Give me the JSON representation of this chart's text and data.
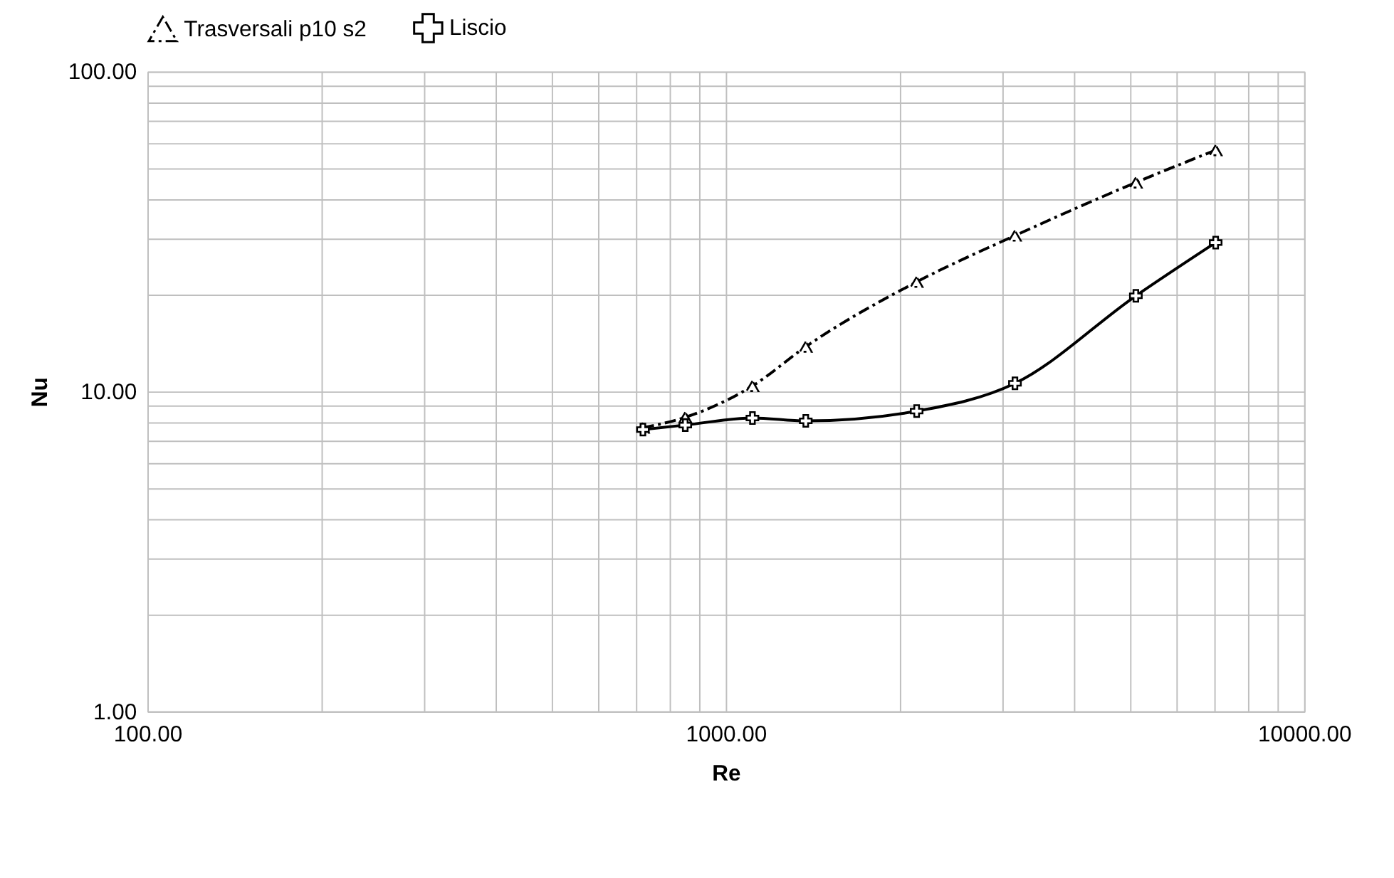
{
  "chart_data": {
    "type": "line",
    "xlabel": "Re",
    "ylabel": "Nu",
    "log": "xy",
    "grid": true,
    "legend": "top",
    "xlim": [
      100,
      10000
    ],
    "ylim": [
      1,
      100
    ],
    "xticks": [
      {
        "value": 100,
        "label": "100.00"
      },
      {
        "value": 200,
        "label": null
      },
      {
        "value": 300,
        "label": null
      },
      {
        "value": 400,
        "label": null
      },
      {
        "value": 500,
        "label": null
      },
      {
        "value": 600,
        "label": null
      },
      {
        "value": 700,
        "label": null
      },
      {
        "value": 800,
        "label": null
      },
      {
        "value": 900,
        "label": null
      },
      {
        "value": 1000,
        "label": "1000.00"
      },
      {
        "value": 2000,
        "label": null
      },
      {
        "value": 3000,
        "label": null
      },
      {
        "value": 4000,
        "label": null
      },
      {
        "value": 5000,
        "label": null
      },
      {
        "value": 6000,
        "label": null
      },
      {
        "value": 7000,
        "label": null
      },
      {
        "value": 8000,
        "label": null
      },
      {
        "value": 9000,
        "label": null
      },
      {
        "value": 10000,
        "label": "10000.00"
      }
    ],
    "yticks": [
      {
        "value": 1,
        "label": "1.00"
      },
      {
        "value": 2,
        "label": null
      },
      {
        "value": 3,
        "label": null
      },
      {
        "value": 4,
        "label": null
      },
      {
        "value": 5,
        "label": null
      },
      {
        "value": 6,
        "label": null
      },
      {
        "value": 7,
        "label": null
      },
      {
        "value": 8,
        "label": null
      },
      {
        "value": 9,
        "label": null
      },
      {
        "value": 10,
        "label": "10.00"
      },
      {
        "value": 20,
        "label": null
      },
      {
        "value": 30,
        "label": null
      },
      {
        "value": 40,
        "label": null
      },
      {
        "value": 50,
        "label": null
      },
      {
        "value": 60,
        "label": null
      },
      {
        "value": 70,
        "label": null
      },
      {
        "value": 80,
        "label": null
      },
      {
        "value": 90,
        "label": null
      },
      {
        "value": 100,
        "label": "100.00"
      }
    ],
    "x": [
      719,
      851,
      1112,
      1375,
      2138,
      3162,
      5117,
      7031
    ],
    "series": [
      {
        "name": "Trasversali p10 s2",
        "color": "#000000",
        "marker": "triangle",
        "line_style": "dashed",
        "values": [
          7.7,
          8.3,
          10.4,
          13.8,
          22.0,
          30.7,
          45.0,
          56.8
        ]
      },
      {
        "name": "Liscio",
        "color": "#000000",
        "marker": "cross",
        "line_style": "solid",
        "values": [
          7.6,
          7.85,
          8.26,
          8.09,
          8.68,
          10.6,
          19.9,
          29.2
        ]
      }
    ]
  }
}
